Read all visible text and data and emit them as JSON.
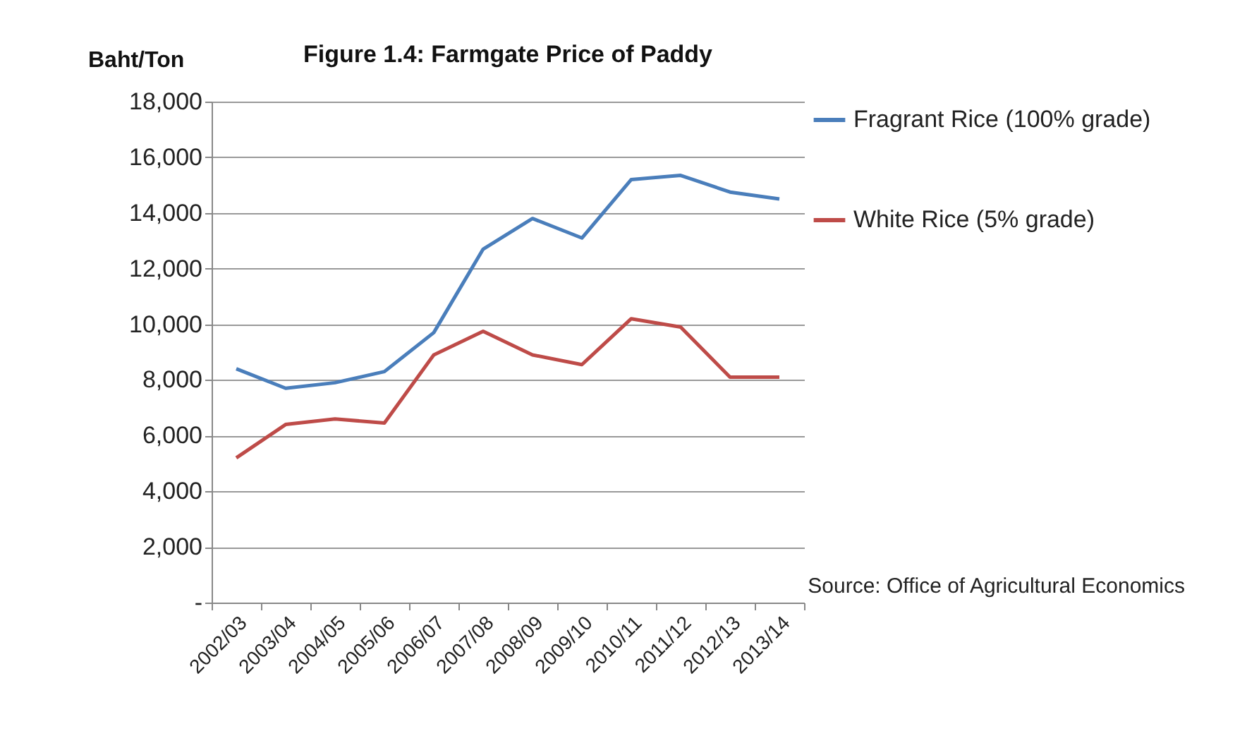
{
  "chart_data": {
    "type": "line",
    "title": "Figure 1.4: Farmgate Price of Paddy",
    "ylabel": "Baht/Ton",
    "annotations": [
      "Source: Office of Agricultural Economics"
    ],
    "categories": [
      "2002/03",
      "2003/04",
      "2004/05",
      "2005/06",
      "2006/07",
      "2007/08",
      "2008/09",
      "2009/10",
      "2010/11",
      "2011/12",
      "2012/13",
      "2013/14"
    ],
    "series": [
      {
        "name": "Fragrant Rice (100% grade)",
        "color": "#4a7ebb",
        "values": [
          8400,
          7700,
          7900,
          8300,
          9700,
          12700,
          13800,
          13100,
          15200,
          15350,
          14750,
          14500
        ]
      },
      {
        "name": "White Rice (5% grade)",
        "color": "#be4b48",
        "values": [
          5200,
          6400,
          6600,
          6450,
          8900,
          9750,
          8900,
          8550,
          10200,
          9900,
          8100,
          8100
        ]
      }
    ],
    "ylim": [
      0,
      18000
    ],
    "yticks": [
      {
        "value": 0,
        "label": "-"
      },
      {
        "value": 2000,
        "label": "2,000"
      },
      {
        "value": 4000,
        "label": "4,000"
      },
      {
        "value": 6000,
        "label": "6,000"
      },
      {
        "value": 8000,
        "label": "8,000"
      },
      {
        "value": 10000,
        "label": "10,000"
      },
      {
        "value": 12000,
        "label": "12,000"
      },
      {
        "value": 14000,
        "label": "14,000"
      },
      {
        "value": 16000,
        "label": "16,000"
      },
      {
        "value": 18000,
        "label": "18,000"
      }
    ],
    "grid": "y",
    "legend": "right",
    "marker": "none",
    "line_style": "solid"
  }
}
